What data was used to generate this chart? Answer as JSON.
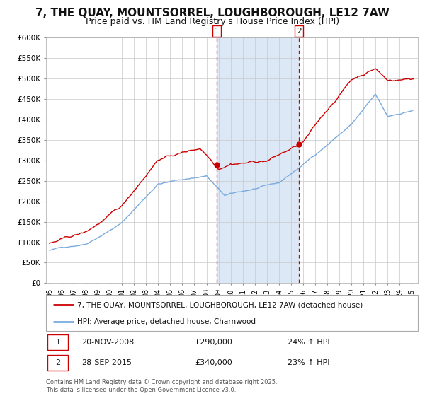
{
  "title": "7, THE QUAY, MOUNTSORREL, LOUGHBOROUGH, LE12 7AW",
  "subtitle": "Price paid vs. HM Land Registry's House Price Index (HPI)",
  "ylim": [
    0,
    600000
  ],
  "yticks": [
    0,
    50000,
    100000,
    150000,
    200000,
    250000,
    300000,
    350000,
    400000,
    450000,
    500000,
    550000,
    600000
  ],
  "ytick_labels": [
    "£0",
    "£50K",
    "£100K",
    "£150K",
    "£200K",
    "£250K",
    "£300K",
    "£350K",
    "£400K",
    "£450K",
    "£500K",
    "£550K",
    "£600K"
  ],
  "line1_color": "#cc0000",
  "line2_color": "#7aaadd",
  "plot_bg": "#ffffff",
  "shade_color": "#dce8f5",
  "vline_color": "#cc0000",
  "marker1_value": 290000,
  "marker2_value": 340000,
  "annotation1_date": "20-NOV-2008",
  "annotation1_price": "£290,000",
  "annotation1_hpi": "24% ↑ HPI",
  "annotation2_date": "28-SEP-2015",
  "annotation2_price": "£340,000",
  "annotation2_hpi": "23% ↑ HPI",
  "legend1_label": "7, THE QUAY, MOUNTSORREL, LOUGHBOROUGH, LE12 7AW (detached house)",
  "legend2_label": "HPI: Average price, detached house, Charnwood",
  "footer": "Contains HM Land Registry data © Crown copyright and database right 2025.\nThis data is licensed under the Open Government Licence v3.0.",
  "title_fontsize": 11,
  "subtitle_fontsize": 9
}
